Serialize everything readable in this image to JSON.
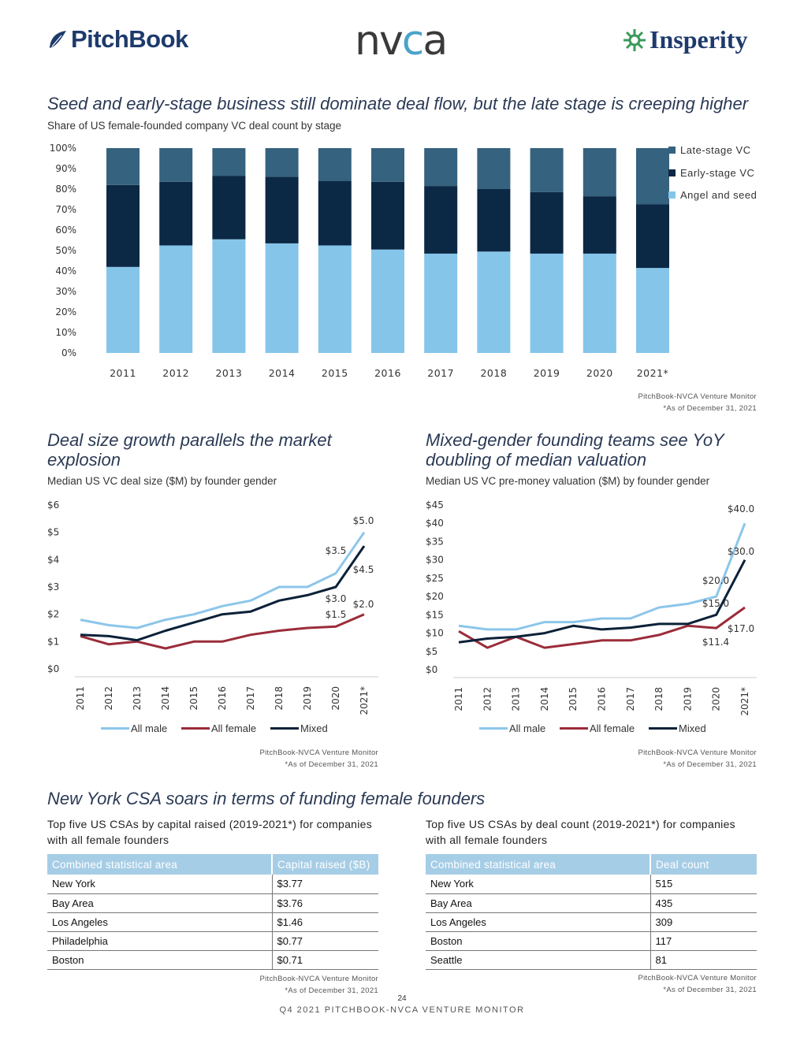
{
  "logos": {
    "pitchbook": "PitchBook",
    "nvca_a": "nv",
    "nvca_b": "c",
    "nvca_c": "a",
    "insperity": "Insperity"
  },
  "colors": {
    "late": "#35627e",
    "early": "#0b2845",
    "angel": "#85c5ea",
    "male": "#8cc6ea",
    "female": "#9b2c3a",
    "mixed": "#0b2138"
  },
  "top_section": {
    "title": "Seed and early-stage business still dominate deal flow, but the late stage is creeping higher",
    "subtitle": "Share of US female-founded company VC deal count by stage",
    "legend": [
      "Late-stage VC",
      "Early-stage VC",
      "Angel and seed"
    ],
    "source": "PitchBook-NVCA Venture Monitor",
    "note": "*As of December 31, 2021"
  },
  "left_section": {
    "title_line1": "Deal size growth parallels the market",
    "title_line2": "explosion",
    "subtitle": "Median US VC deal size ($M) by founder gender",
    "legend": [
      "All male",
      "All female",
      "Mixed"
    ],
    "source": "PitchBook-NVCA Venture Monitor",
    "note": "*As of December 31, 2021"
  },
  "right_section": {
    "title_line1": "Mixed-gender founding teams see YoY",
    "title_line2": "doubling of median valuation",
    "subtitle": "Median US VC pre-money valuation ($M) by founder gender",
    "legend": [
      "All male",
      "All female",
      "Mixed"
    ],
    "source": "PitchBook-NVCA Venture Monitor",
    "note": "*As of December 31, 2021"
  },
  "bottom_section": {
    "title": "New York CSA soars in terms of funding female founders",
    "left_caption_1": "Top five US CSAs by capital raised (2019-2021*) for companies",
    "left_caption_2": "with all female founders",
    "right_caption_1": "Top five US CSAs by deal count (2019-2021*) for companies",
    "right_caption_2": "with all female founders",
    "left_table": {
      "headers": [
        "Combined statistical area",
        "Capital raised ($B)"
      ],
      "rows": [
        [
          "New York",
          "$3.77"
        ],
        [
          "Bay Area",
          "$3.76"
        ],
        [
          "Los Angeles",
          "$1.46"
        ],
        [
          "Philadelphia",
          "$0.77"
        ],
        [
          "Boston",
          "$0.71"
        ]
      ]
    },
    "right_table": {
      "headers": [
        "Combined statistical area",
        "Deal count"
      ],
      "rows": [
        [
          "New York",
          "515"
        ],
        [
          "Bay Area",
          "435"
        ],
        [
          "Los Angeles",
          "309"
        ],
        [
          "Boston",
          "117"
        ],
        [
          "Seattle",
          "81"
        ]
      ]
    },
    "source": "PitchBook-NVCA Venture Monitor",
    "note": "*As of December 31, 2021"
  },
  "footer": {
    "page": "24",
    "name": "Q4 2021 PITCHBOOK-NVCA VENTURE MONITOR"
  },
  "chart_data": [
    {
      "type": "bar",
      "stacked": true,
      "title": "Seed and early-stage business still dominate deal flow, but the late stage is creeping higher",
      "categories": [
        "2011",
        "2012",
        "2013",
        "2014",
        "2015",
        "2016",
        "2017",
        "2018",
        "2019",
        "2020",
        "2021*"
      ],
      "series": [
        {
          "name": "Angel and seed",
          "values": [
            42,
            52.5,
            55.5,
            53.5,
            52.5,
            50.5,
            48.5,
            49.5,
            48.5,
            48.5,
            41.5
          ]
        },
        {
          "name": "Early-stage VC",
          "values": [
            40,
            31,
            31,
            32.5,
            31.5,
            33,
            33,
            30.5,
            30,
            28,
            31
          ]
        },
        {
          "name": "Late-stage VC",
          "values": [
            18,
            16.5,
            13.5,
            14,
            16,
            16.5,
            18.5,
            20,
            21.5,
            23.5,
            27.5
          ]
        }
      ],
      "yticks": [
        "0%",
        "10%",
        "20%",
        "30%",
        "40%",
        "50%",
        "60%",
        "70%",
        "80%",
        "90%",
        "100%"
      ],
      "ylim": [
        0,
        100
      ]
    },
    {
      "type": "line",
      "title": "Median US VC deal size ($M) by founder gender",
      "x": [
        "2011",
        "2012",
        "2013",
        "2014",
        "2015",
        "2016",
        "2017",
        "2018",
        "2019",
        "2020",
        "2021*"
      ],
      "series": [
        {
          "name": "All male",
          "values": [
            1.8,
            1.6,
            1.5,
            1.8,
            2.0,
            2.3,
            2.5,
            3.0,
            3.0,
            3.5,
            5.0
          ]
        },
        {
          "name": "All female",
          "values": [
            1.2,
            0.9,
            1.0,
            0.75,
            1.0,
            1.0,
            1.25,
            1.4,
            1.5,
            1.55,
            2.0
          ]
        },
        {
          "name": "Mixed",
          "values": [
            1.25,
            1.2,
            1.05,
            1.4,
            1.7,
            2.0,
            2.1,
            2.5,
            2.7,
            3.0,
            4.5
          ]
        }
      ],
      "yticks": [
        "$0",
        "$1",
        "$2",
        "$3",
        "$4",
        "$5",
        "$6"
      ],
      "ylim": [
        0,
        6
      ],
      "labels": [
        "$5.0",
        "$3.5",
        "$4.5",
        "$3.0",
        "$2.0",
        "$1.5"
      ]
    },
    {
      "type": "line",
      "title": "Median US VC pre-money valuation ($M) by founder gender",
      "x": [
        "2011",
        "2012",
        "2013",
        "2014",
        "2015",
        "2016",
        "2017",
        "2018",
        "2019",
        "2020",
        "2021*"
      ],
      "series": [
        {
          "name": "All male",
          "values": [
            12,
            11,
            11,
            13,
            13,
            14,
            14,
            17,
            18,
            20,
            40
          ]
        },
        {
          "name": "All female",
          "values": [
            10.5,
            6,
            9,
            6,
            7,
            8,
            8,
            9.5,
            12,
            11.4,
            17
          ]
        },
        {
          "name": "Mixed",
          "values": [
            7.5,
            8.5,
            9,
            10,
            12,
            11,
            11.5,
            12.5,
            12.5,
            15,
            30
          ]
        }
      ],
      "yticks": [
        "$0",
        "$5",
        "$10",
        "$15",
        "$20",
        "$25",
        "$30",
        "$35",
        "$40",
        "$45"
      ],
      "ylim": [
        0,
        45
      ],
      "labels": [
        "$40.0",
        "$30.0",
        "$20.0",
        "$15.0",
        "$17.0",
        "$11.4"
      ]
    }
  ]
}
